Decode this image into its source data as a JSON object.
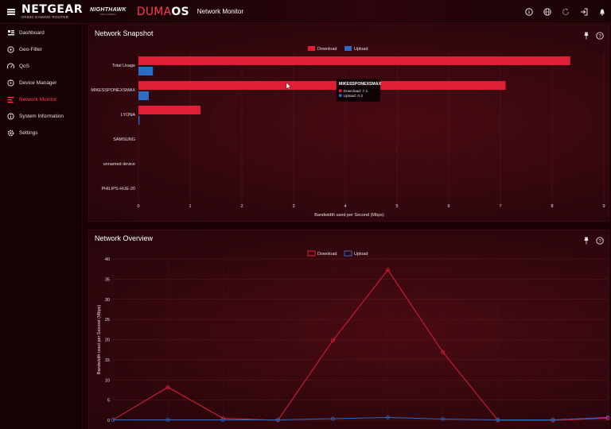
{
  "header": {
    "brand": "NETGEAR",
    "brand_sub": "XR500 GAMING ROUTER",
    "nighthawk": "NIGHTHAWK",
    "nighthawk_sub": "PRO GAMING",
    "duma_prefix": "DUMA",
    "duma_suffix": "OS",
    "page_title": "Network Monitor",
    "icons": [
      "info-icon",
      "globe-icon",
      "refresh-icon",
      "logout-icon",
      "bell-icon"
    ]
  },
  "sidebar": {
    "items": [
      {
        "label": "Dashboard",
        "icon": "dashboard-icon",
        "active": false
      },
      {
        "label": "Geo-Filter",
        "icon": "geo-filter-icon",
        "active": false
      },
      {
        "label": "QoS",
        "icon": "qos-icon",
        "active": false
      },
      {
        "label": "Device Manager",
        "icon": "device-manager-icon",
        "active": false
      },
      {
        "label": "Network Monitor",
        "icon": "network-monitor-icon",
        "active": true
      },
      {
        "label": "System Information",
        "icon": "system-info-icon",
        "active": false
      },
      {
        "label": "Settings",
        "icon": "settings-icon",
        "active": false
      }
    ]
  },
  "colors": {
    "download": "#e01e36",
    "upload": "#2d6bc4",
    "accent": "#ff3a4f"
  },
  "snapshot": {
    "title": "Network Snapshot",
    "tooltip": {
      "title": "MIKESSPONEXSMAX",
      "download_line": "Download: 7.1",
      "upload_line": "Upload: 0.2"
    }
  },
  "overview": {
    "title": "Network Overview"
  },
  "chart_data": [
    {
      "type": "bar",
      "orientation": "horizontal",
      "categories": [
        "Total Usage",
        "MIKESSPONEXSMAX",
        "LYONA",
        "SAMSUNG",
        "unnamed device",
        "PHILIPS-HUE-20"
      ],
      "series": [
        {
          "name": "Download",
          "values": [
            8.35,
            7.1,
            1.2,
            0,
            0,
            0
          ]
        },
        {
          "name": "Upload",
          "values": [
            0.28,
            0.2,
            0.02,
            0,
            0,
            0
          ]
        }
      ],
      "xlabel": "Bandwidth used per Second (Mbps)",
      "xlim": [
        0,
        9
      ],
      "xticks": [
        "0",
        "1",
        "2",
        "3",
        "4",
        "5",
        "6",
        "7",
        "8",
        "9"
      ],
      "legend": "top-center"
    },
    {
      "type": "line",
      "x": [
        0,
        1,
        2,
        3,
        4,
        5,
        6,
        7,
        8,
        9
      ],
      "series": [
        {
          "name": "Download",
          "values": [
            0.1,
            8.2,
            0.5,
            0,
            19.8,
            37.3,
            16.9,
            0,
            0,
            0.5
          ]
        },
        {
          "name": "Upload",
          "values": [
            0.1,
            0.1,
            0.1,
            0.1,
            0.4,
            0.7,
            0.3,
            0.1,
            0.1,
            0.7
          ]
        }
      ],
      "ylabel": "Bandwidth used per Second (Mbps)",
      "ylim": [
        0,
        40
      ],
      "yticks": [
        "0",
        "5",
        "10",
        "15",
        "20",
        "25",
        "30",
        "35",
        "40"
      ],
      "legend": "top-center"
    }
  ]
}
